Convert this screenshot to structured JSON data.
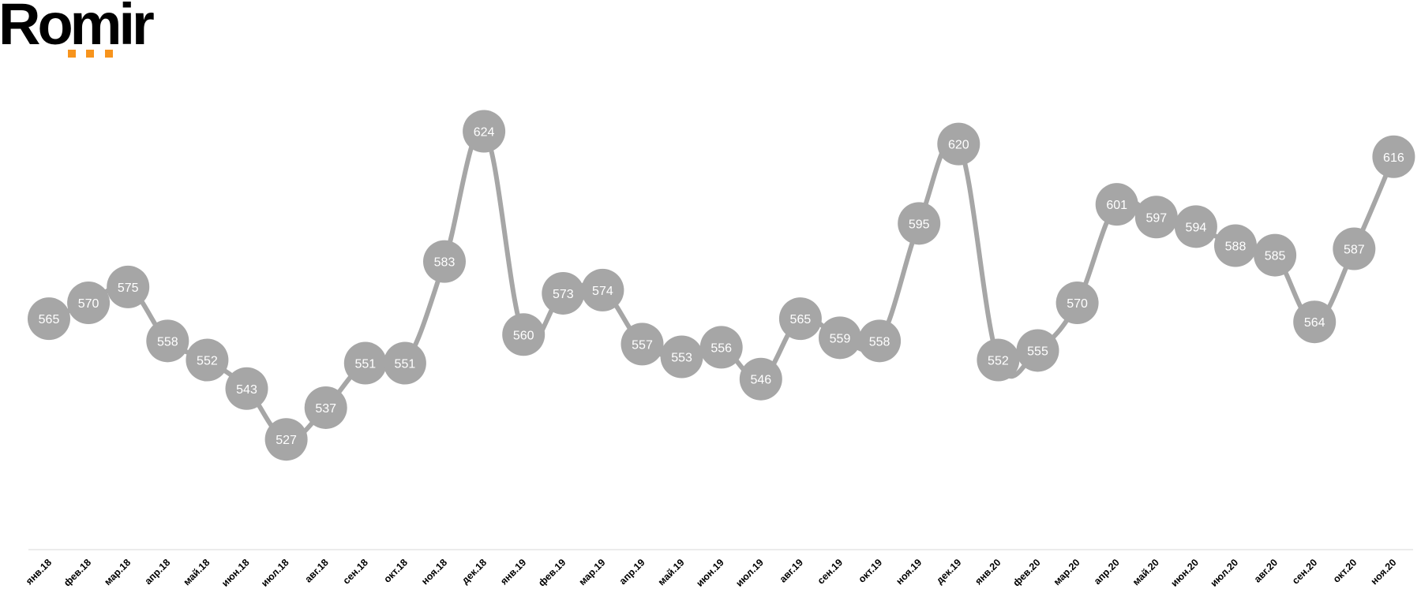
{
  "logo": {
    "text": "Romir",
    "dot_color": "#f7941d"
  },
  "chart_data": {
    "type": "line",
    "title": "",
    "xlabel": "",
    "ylabel": "",
    "categories": [
      "янв.18",
      "фев.18",
      "мар.18",
      "апр.18",
      "май.18",
      "июн.18",
      "июл.18",
      "авг.18",
      "сен.18",
      "окт.18",
      "ноя.18",
      "дек.18",
      "янв.19",
      "фев.19",
      "мар.19",
      "апр.19",
      "май.19",
      "июн.19",
      "июл.19",
      "авг.19",
      "сен.19",
      "окт.19",
      "ноя.19",
      "дек.19",
      "янв.20",
      "фев.20",
      "мар.20",
      "апр.20",
      "май.20",
      "июн.20",
      "июл.20",
      "авг.20",
      "сен.20",
      "окт.20",
      "ноя.20"
    ],
    "series": [
      {
        "values": [
          565,
          570,
          575,
          558,
          552,
          543,
          527,
          537,
          551,
          551,
          583,
          624,
          560,
          573,
          574,
          557,
          553,
          556,
          546,
          565,
          559,
          558,
          595,
          620,
          552,
          555,
          570,
          601,
          597,
          594,
          588,
          585,
          564,
          587,
          616
        ],
        "color": "#a6a6a6"
      }
    ],
    "ylim": [
      499,
      643
    ],
    "grid": false,
    "legend": "none",
    "data_labels": true,
    "label_color": "#ffffff"
  }
}
